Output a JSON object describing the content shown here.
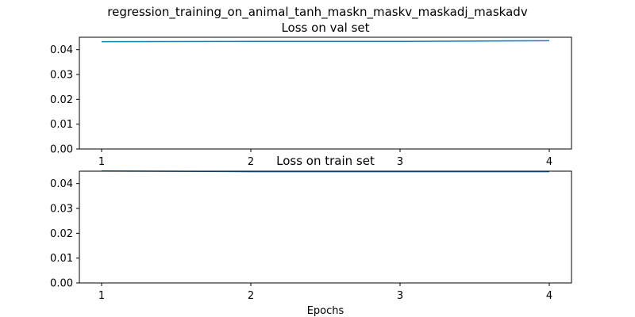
{
  "figure": {
    "title": "regression_training_on_animal_tanh_maskn_maskv_maskadj_maskadv"
  },
  "chart_data": [
    {
      "type": "line",
      "title": "Loss on val set",
      "xlabel": "",
      "ylabel": "",
      "x": [
        1,
        2,
        3,
        4
      ],
      "xticks": [
        "1",
        "2",
        "3",
        "4"
      ],
      "yticks": [
        "0.00",
        "0.01",
        "0.02",
        "0.03",
        "0.04"
      ],
      "ylim": [
        0,
        0.045
      ],
      "series": [
        {
          "values": [
            0.0432,
            0.0433,
            0.0433,
            0.0436
          ],
          "color": "#1f77b4"
        }
      ],
      "grid": false,
      "legend": "none"
    },
    {
      "type": "line",
      "title": "Loss on train set",
      "xlabel": "Epochs",
      "ylabel": "",
      "x": [
        1,
        2,
        3,
        4
      ],
      "xticks": [
        "1",
        "2",
        "3",
        "4"
      ],
      "yticks": [
        "0.00",
        "0.01",
        "0.02",
        "0.03",
        "0.04"
      ],
      "ylim": [
        0,
        0.045
      ],
      "series": [
        {
          "values": [
            0.0451,
            0.0448,
            0.0448,
            0.0448
          ],
          "color": "#1f77b4"
        }
      ],
      "grid": false,
      "legend": "none"
    }
  ]
}
